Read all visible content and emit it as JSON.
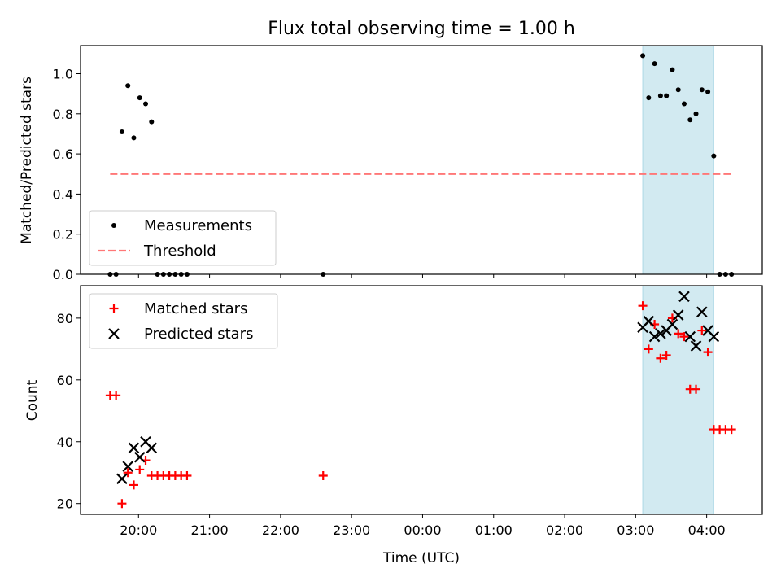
{
  "chart_data": [
    {
      "type": "scatter",
      "title": "Flux total observing time = 1.00 h",
      "ylabel": "Matched/Predicted stars",
      "xlabel": "",
      "xlim": [
        "19:11",
        "04:47"
      ],
      "ylim": [
        0,
        1.14
      ],
      "yticks": [
        "0.0",
        "0.2",
        "0.4",
        "0.6",
        "0.8",
        "1.0"
      ],
      "xticks": [
        "20:00",
        "21:00",
        "22:00",
        "23:00",
        "00:00",
        "01:00",
        "02:00",
        "03:00",
        "04:00"
      ],
      "shaded_region": {
        "from": "03:06",
        "to": "04:06",
        "color": "#add8e6"
      },
      "legend": {
        "placement": "lower-left",
        "entries": [
          "Measurements",
          "Threshold"
        ]
      },
      "series": [
        {
          "name": "Measurements",
          "color": "#000000",
          "marker": "dot",
          "points": [
            [
              "19:36",
              0.0
            ],
            [
              "19:41",
              0.0
            ],
            [
              "19:46",
              0.71
            ],
            [
              "19:51",
              0.94
            ],
            [
              "19:56",
              0.68
            ],
            [
              "20:01",
              0.88
            ],
            [
              "20:06",
              0.85
            ],
            [
              "20:11",
              0.76
            ],
            [
              "20:16",
              0.0
            ],
            [
              "20:21",
              0.0
            ],
            [
              "20:26",
              0.0
            ],
            [
              "20:31",
              0.0
            ],
            [
              "20:36",
              0.0
            ],
            [
              "20:41",
              0.0
            ],
            [
              "22:36",
              0.0
            ],
            [
              "03:06",
              1.09
            ],
            [
              "03:11",
              0.88
            ],
            [
              "03:16",
              1.05
            ],
            [
              "03:21",
              0.89
            ],
            [
              "03:26",
              0.89
            ],
            [
              "03:31",
              1.02
            ],
            [
              "03:36",
              0.92
            ],
            [
              "03:41",
              0.85
            ],
            [
              "03:46",
              0.77
            ],
            [
              "03:51",
              0.8
            ],
            [
              "03:56",
              0.92
            ],
            [
              "04:01",
              0.91
            ],
            [
              "04:06",
              0.59
            ],
            [
              "04:11",
              0.0
            ],
            [
              "04:16",
              0.0
            ],
            [
              "04:21",
              0.0
            ]
          ]
        },
        {
          "name": "Threshold",
          "color": "#ff7777",
          "style": "dashed",
          "points": [
            [
              "19:36",
              0.5
            ],
            [
              "04:21",
              0.5
            ]
          ]
        }
      ]
    },
    {
      "type": "scatter",
      "title": "",
      "ylabel": "Count",
      "xlabel": "Time (UTC)",
      "xlim": [
        "19:11",
        "04:47"
      ],
      "ylim": [
        16.5,
        90.5
      ],
      "yticks": [
        "20",
        "40",
        "60",
        "80"
      ],
      "xticks": [
        "20:00",
        "21:00",
        "22:00",
        "23:00",
        "00:00",
        "01:00",
        "02:00",
        "03:00",
        "04:00"
      ],
      "shaded_region": {
        "from": "03:06",
        "to": "04:06",
        "color": "#add8e6"
      },
      "legend": {
        "placement": "upper-left",
        "entries": [
          "Matched stars",
          "Predicted stars"
        ]
      },
      "series": [
        {
          "name": "Matched stars",
          "color": "#ff0000",
          "marker": "plus",
          "points": [
            [
              "19:36",
              55
            ],
            [
              "19:41",
              55
            ],
            [
              "19:46",
              20
            ],
            [
              "19:51",
              30
            ],
            [
              "19:56",
              26
            ],
            [
              "20:01",
              31
            ],
            [
              "20:06",
              34
            ],
            [
              "20:11",
              29
            ],
            [
              "20:16",
              29
            ],
            [
              "20:21",
              29
            ],
            [
              "20:26",
              29
            ],
            [
              "20:31",
              29
            ],
            [
              "20:36",
              29
            ],
            [
              "20:41",
              29
            ],
            [
              "22:36",
              29
            ],
            [
              "03:06",
              84
            ],
            [
              "03:11",
              70
            ],
            [
              "03:16",
              78
            ],
            [
              "03:21",
              67
            ],
            [
              "03:26",
              68
            ],
            [
              "03:31",
              80
            ],
            [
              "03:36",
              75
            ],
            [
              "03:41",
              74
            ],
            [
              "03:46",
              57
            ],
            [
              "03:51",
              57
            ],
            [
              "03:56",
              76
            ],
            [
              "04:01",
              69
            ],
            [
              "04:06",
              44
            ],
            [
              "04:11",
              44
            ],
            [
              "04:16",
              44
            ],
            [
              "04:21",
              44
            ]
          ]
        },
        {
          "name": "Predicted stars",
          "color": "#000000",
          "marker": "x",
          "points": [
            [
              "19:46",
              28
            ],
            [
              "19:51",
              32
            ],
            [
              "19:56",
              38
            ],
            [
              "20:01",
              35
            ],
            [
              "20:06",
              40
            ],
            [
              "20:11",
              38
            ],
            [
              "03:06",
              77
            ],
            [
              "03:11",
              79
            ],
            [
              "03:16",
              74
            ],
            [
              "03:21",
              75
            ],
            [
              "03:26",
              76
            ],
            [
              "03:31",
              78
            ],
            [
              "03:36",
              81
            ],
            [
              "03:41",
              87
            ],
            [
              "03:46",
              74
            ],
            [
              "03:51",
              71
            ],
            [
              "03:56",
              82
            ],
            [
              "04:01",
              76
            ],
            [
              "04:06",
              74
            ]
          ]
        }
      ]
    }
  ]
}
